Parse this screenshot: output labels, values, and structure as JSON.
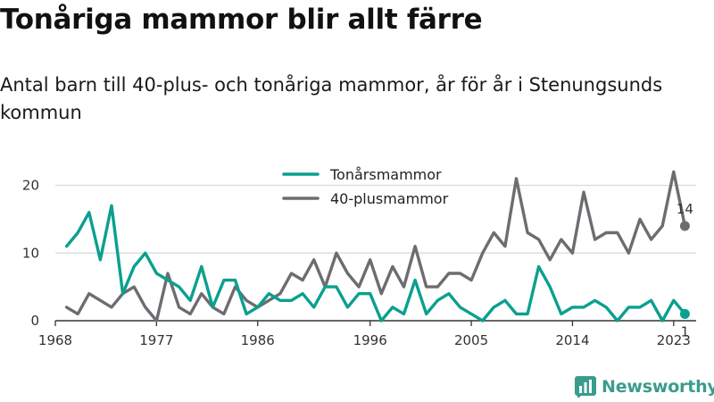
{
  "title": "Tonåriga mammor blir allt färre",
  "subtitle": "Antal barn till 40-plus- och tonåriga mammor, år för år i Stenungsunds kommun",
  "brand": {
    "name": "Newsworthy",
    "logo_icon": "bar-chart-logo-icon"
  },
  "colors": {
    "teen": "#0aa08f",
    "forty_plus": "#6e6c71",
    "grid": "#d9d9d9",
    "axis": "#333333"
  },
  "chart_data": {
    "type": "line",
    "title": "",
    "xlabel": "",
    "ylabel": "",
    "x": [
      1969,
      1970,
      1971,
      1972,
      1973,
      1974,
      1975,
      1976,
      1977,
      1978,
      1979,
      1980,
      1981,
      1982,
      1983,
      1984,
      1985,
      1986,
      1987,
      1988,
      1989,
      1990,
      1991,
      1992,
      1993,
      1994,
      1995,
      1996,
      1997,
      1998,
      1999,
      2000,
      2001,
      2002,
      2003,
      2004,
      2005,
      2006,
      2007,
      2008,
      2009,
      2010,
      2011,
      2012,
      2013,
      2014,
      2015,
      2016,
      2017,
      2018,
      2019,
      2020,
      2021,
      2022,
      2023,
      2024
    ],
    "xlim": [
      1968,
      2025
    ],
    "ylim": [
      0,
      22
    ],
    "x_ticks": [
      "1968",
      "1977",
      "1986",
      "1996",
      "2005",
      "2014",
      "2023"
    ],
    "y_ticks": [
      "0",
      "10",
      "20"
    ],
    "grid": "horizontal",
    "legend_position": "top-center",
    "series": [
      {
        "name": "Tonårsmammor",
        "color": "#0aa08f",
        "values": [
          11,
          13,
          16,
          9,
          17,
          4,
          8,
          10,
          7,
          6,
          5,
          3,
          8,
          2,
          6,
          6,
          1,
          2,
          4,
          3,
          3,
          4,
          2,
          5,
          5,
          2,
          4,
          4,
          0,
          2,
          1,
          6,
          1,
          3,
          4,
          2,
          1,
          0,
          2,
          3,
          1,
          1,
          8,
          5,
          1,
          2,
          2,
          3,
          2,
          0,
          2,
          2,
          3,
          0,
          3,
          1
        ],
        "end_label": "1"
      },
      {
        "name": "40-plusmammor",
        "color": "#6e6c71",
        "values": [
          2,
          1,
          4,
          3,
          2,
          4,
          5,
          2,
          0,
          7,
          2,
          1,
          4,
          2,
          1,
          5,
          3,
          2,
          3,
          4,
          7,
          6,
          9,
          5,
          10,
          7,
          5,
          9,
          4,
          8,
          5,
          11,
          5,
          5,
          7,
          7,
          6,
          10,
          13,
          11,
          21,
          13,
          12,
          9,
          12,
          10,
          19,
          12,
          13,
          13,
          10,
          15,
          12,
          14,
          22,
          14
        ],
        "end_label": "14"
      }
    ]
  }
}
